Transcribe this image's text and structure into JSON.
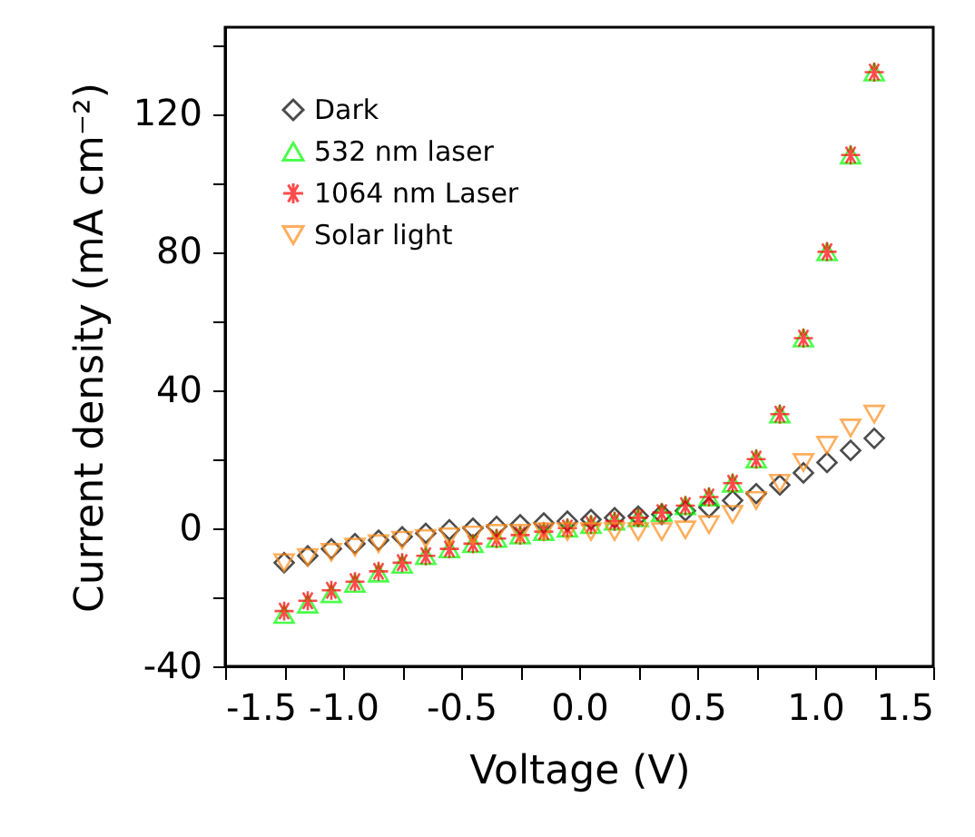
{
  "chart_data": {
    "type": "scatter",
    "xlabel": "Voltage (V)",
    "ylabel": "Current density (mA cm⁻²)",
    "x": [
      -1.25,
      -1.15,
      -1.05,
      -0.95,
      -0.85,
      -0.75,
      -0.65,
      -0.55,
      -0.45,
      -0.35,
      -0.25,
      -0.15,
      -0.05,
      0.05,
      0.15,
      0.25,
      0.35,
      0.45,
      0.55,
      0.65,
      0.75,
      0.85,
      0.95,
      1.05,
      1.15,
      1.25
    ],
    "series": [
      {
        "name": "Dark",
        "color": "#000000",
        "marker": "diamond",
        "values": [
          -10,
          -8,
          -6,
          -4.5,
          -3.5,
          -2.5,
          -1.5,
          -0.5,
          0,
          0.5,
          1,
          1.5,
          2,
          2.5,
          3,
          3.5,
          4,
          5,
          6,
          8,
          10,
          12.5,
          16,
          19,
          22.5,
          26
        ]
      },
      {
        "name": "532 nm laser",
        "color": "#00ff00",
        "marker": "triangle",
        "values": [
          -25,
          -22,
          -19,
          -16,
          -13,
          -10.5,
          -8,
          -6,
          -4.5,
          -3,
          -2,
          -1,
          0,
          1,
          2,
          3,
          4.5,
          6.5,
          9,
          13,
          20,
          33,
          55,
          80,
          108,
          132
        ]
      },
      {
        "name": "1064 nm Laser",
        "color": "#ff0000",
        "marker": "cross",
        "values": [
          -24,
          -21,
          -18,
          -15.5,
          -12.5,
          -10,
          -8,
          -6,
          -4.5,
          -3,
          -2,
          -1,
          0,
          1,
          2,
          3,
          4.5,
          6.5,
          9,
          13,
          20,
          33,
          55,
          80,
          108,
          132
        ]
      },
      {
        "name": "Solar light",
        "color": "#ff8c1a",
        "marker": "triangle-down",
        "values": [
          -10,
          -8.5,
          -7,
          -5.5,
          -4.5,
          -3.5,
          -3,
          -2.5,
          -2,
          -1.5,
          -1.5,
          -1,
          -1,
          -1,
          -1,
          -1,
          -1,
          -0.5,
          1,
          4,
          8,
          13,
          19,
          24,
          29,
          33
        ]
      }
    ],
    "xlim": [
      -1.5,
      1.5
    ],
    "xticks": [
      -1.5,
      {
        "value": -1.25,
        "label": null
      },
      "-1.0",
      {
        "value": -0.75,
        "label": null
      },
      -0.5,
      {
        "value": -0.25,
        "label": null
      },
      "0.0",
      {
        "value": 0.25,
        "label": null
      },
      0.5,
      {
        "value": 0.75,
        "label": null
      },
      "1.0",
      {
        "value": 1.25,
        "label": null
      },
      1.5
    ],
    "ylim": [
      -40,
      145
    ],
    "yticks": [
      -40,
      {
        "value": -20,
        "label": null
      },
      0,
      {
        "value": 20,
        "label": null
      },
      40,
      {
        "value": 60,
        "label": null
      },
      80,
      {
        "value": 100,
        "label": null
      },
      120,
      {
        "value": 140,
        "label": null
      }
    ],
    "grid": false,
    "legend": "top left"
  }
}
